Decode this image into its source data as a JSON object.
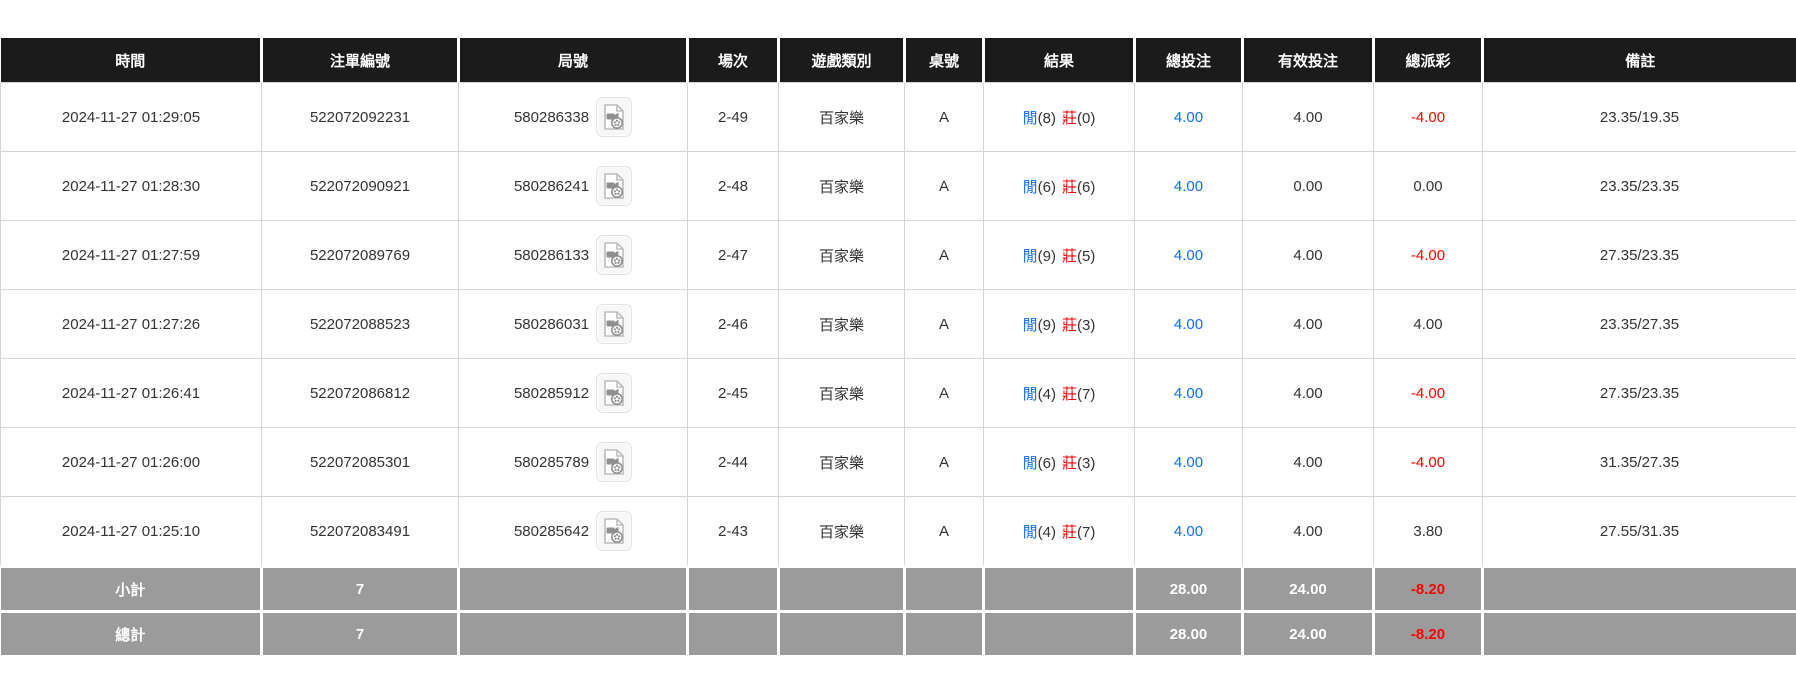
{
  "colors": {
    "header_bg": "#1b1b1b",
    "header_text": "#ffffff",
    "accent_blue": "#0d6efd",
    "accent_red": "#ff0000",
    "summary_bg": "#9b9b9b",
    "body_text": "#333333"
  },
  "columns": [
    "時間",
    "注單編號",
    "局號",
    "場次",
    "遊戲類別",
    "桌號",
    "結果",
    "總投注",
    "有效投注",
    "總派彩",
    "備註"
  ],
  "result_labels": {
    "player": "閒",
    "banker": "莊"
  },
  "icons": {
    "video": "video-replay-icon"
  },
  "rows": [
    {
      "time": "2024-11-27 01:29:05",
      "bet_no": "522072092231",
      "round_no": "580286338",
      "session": "2-49",
      "game": "百家樂",
      "table": "A",
      "player": "(8)",
      "banker": "(0)",
      "total_bet": "4.00",
      "valid_bet": "4.00",
      "payout": "-4.00",
      "note": "23.35/19.35"
    },
    {
      "time": "2024-11-27 01:28:30",
      "bet_no": "522072090921",
      "round_no": "580286241",
      "session": "2-48",
      "game": "百家樂",
      "table": "A",
      "player": "(6)",
      "banker": "(6)",
      "total_bet": "4.00",
      "valid_bet": "0.00",
      "payout": "0.00",
      "note": "23.35/23.35"
    },
    {
      "time": "2024-11-27 01:27:59",
      "bet_no": "522072089769",
      "round_no": "580286133",
      "session": "2-47",
      "game": "百家樂",
      "table": "A",
      "player": "(9)",
      "banker": "(5)",
      "total_bet": "4.00",
      "valid_bet": "4.00",
      "payout": "-4.00",
      "note": "27.35/23.35"
    },
    {
      "time": "2024-11-27 01:27:26",
      "bet_no": "522072088523",
      "round_no": "580286031",
      "session": "2-46",
      "game": "百家樂",
      "table": "A",
      "player": "(9)",
      "banker": "(3)",
      "total_bet": "4.00",
      "valid_bet": "4.00",
      "payout": "4.00",
      "note": "23.35/27.35"
    },
    {
      "time": "2024-11-27 01:26:41",
      "bet_no": "522072086812",
      "round_no": "580285912",
      "session": "2-45",
      "game": "百家樂",
      "table": "A",
      "player": "(4)",
      "banker": "(7)",
      "total_bet": "4.00",
      "valid_bet": "4.00",
      "payout": "-4.00",
      "note": "27.35/23.35"
    },
    {
      "time": "2024-11-27 01:26:00",
      "bet_no": "522072085301",
      "round_no": "580285789",
      "session": "2-44",
      "game": "百家樂",
      "table": "A",
      "player": "(6)",
      "banker": "(3)",
      "total_bet": "4.00",
      "valid_bet": "4.00",
      "payout": "-4.00",
      "note": "31.35/27.35"
    },
    {
      "time": "2024-11-27 01:25:10",
      "bet_no": "522072083491",
      "round_no": "580285642",
      "session": "2-43",
      "game": "百家樂",
      "table": "A",
      "player": "(4)",
      "banker": "(7)",
      "total_bet": "4.00",
      "valid_bet": "4.00",
      "payout": "3.80",
      "note": "27.55/31.35"
    }
  ],
  "summary_rows": [
    {
      "label": "小計",
      "count": "7",
      "total_bet": "28.00",
      "valid_bet": "24.00",
      "payout": "-8.20"
    },
    {
      "label": "總計",
      "count": "7",
      "total_bet": "28.00",
      "valid_bet": "24.00",
      "payout": "-8.20"
    }
  ]
}
